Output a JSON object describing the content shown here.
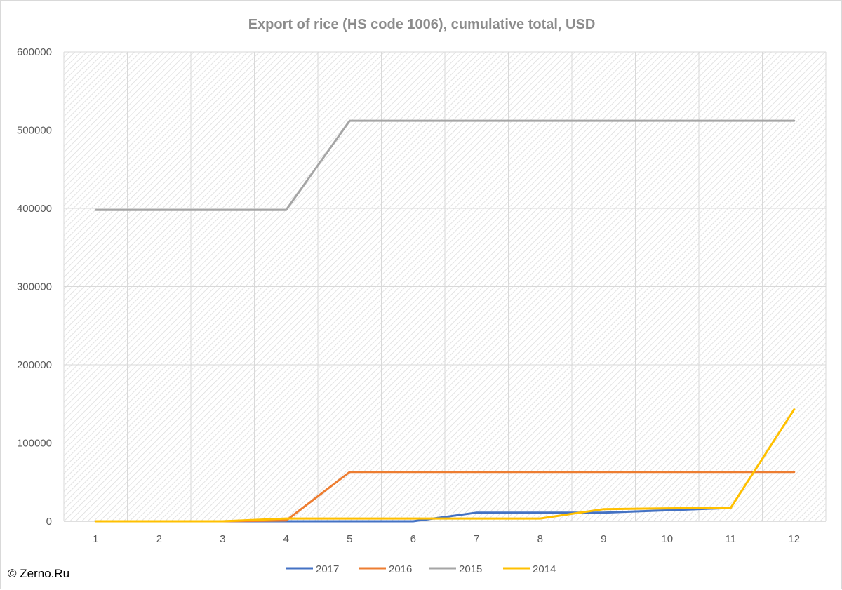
{
  "chart_data": {
    "type": "line",
    "title": "Export of rice (HS code 1006), cumulative total, USD",
    "xlabel": "",
    "ylabel": "",
    "x": [
      "1",
      "2",
      "3",
      "4",
      "5",
      "6",
      "7",
      "8",
      "9",
      "10",
      "11",
      "12"
    ],
    "ylim": [
      0,
      600000
    ],
    "yticks": [
      "0",
      "100000",
      "200000",
      "300000",
      "400000",
      "500000",
      "600000"
    ],
    "grid": true,
    "legend_position": "bottom",
    "series": [
      {
        "name": "2017",
        "color": "#4472c4",
        "values": [
          0,
          0,
          0,
          0,
          0,
          0,
          11000,
          11000,
          11000,
          14000,
          17000,
          null
        ]
      },
      {
        "name": "2016",
        "color": "#ed7d31",
        "values": [
          0,
          0,
          0,
          1000,
          63000,
          63000,
          63000,
          63000,
          63000,
          63000,
          63000,
          63000
        ]
      },
      {
        "name": "2015",
        "color": "#a5a5a5",
        "values": [
          398000,
          398000,
          398000,
          398000,
          512000,
          512000,
          512000,
          512000,
          512000,
          512000,
          512000,
          512000
        ]
      },
      {
        "name": "2014",
        "color": "#ffc000",
        "values": [
          0,
          0,
          0,
          3500,
          3500,
          3500,
          3500,
          3500,
          15500,
          16500,
          17000,
          143000
        ]
      }
    ]
  },
  "credit": "© Zerno.Ru"
}
